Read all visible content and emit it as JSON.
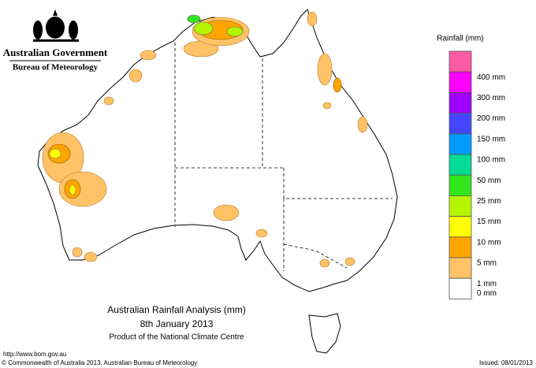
{
  "header": {
    "government": "Australian Government",
    "bureau": "Bureau of Meteorology"
  },
  "title": {
    "main": "Australian Rainfall Analysis (mm)",
    "date": "8th January 2013",
    "product": "Product of the National Climate Centre"
  },
  "legend": {
    "title": "Rainfall (mm)",
    "items": [
      {
        "label": null,
        "color": "#ff5aa5"
      },
      {
        "label": "400 mm",
        "color": "#ff00ff"
      },
      {
        "label": "300 mm",
        "color": "#a000ff"
      },
      {
        "label": "200 mm",
        "color": "#4646ff"
      },
      {
        "label": "150 mm",
        "color": "#009bff"
      },
      {
        "label": "100 mm",
        "color": "#00dc96"
      },
      {
        "label": "50 mm",
        "color": "#32e61e"
      },
      {
        "label": "25 mm",
        "color": "#b4f500"
      },
      {
        "label": "15 mm",
        "color": "#ffff00"
      },
      {
        "label": "10 mm",
        "color": "#ffa500"
      },
      {
        "label": "5 mm",
        "color": "#ffc266"
      },
      {
        "label": "1 mm",
        "color": "#ffffff"
      }
    ],
    "bottom_label": "0 mm"
  },
  "footer": {
    "url": "http://www.bom.gov.au",
    "copyright": "© Commonwealth of Australia 2013, Australian Bureau of Meteorology",
    "issued": "Issued: 08/01/2013"
  }
}
